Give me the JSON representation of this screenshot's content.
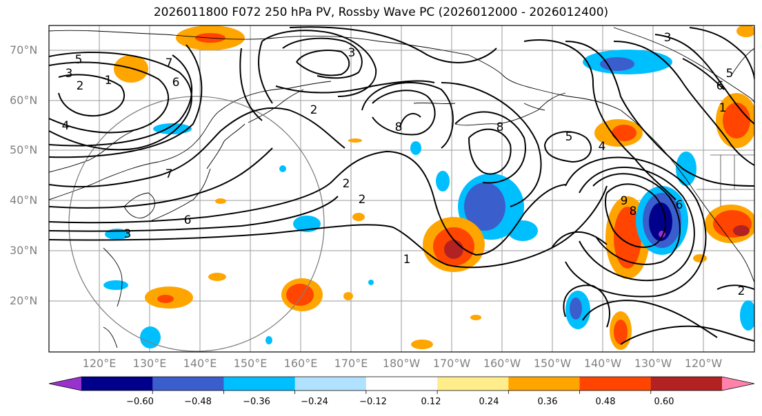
{
  "title": "2026011800 F072 250 hPa PV, Rossby Wave PC (2026012000 - 2026012400)",
  "lat_labels": [
    "70°N",
    "60°N",
    "50°N",
    "40°N",
    "30°N",
    "20°N"
  ],
  "lon_labels": [
    "120°E",
    "130°E",
    "140°E",
    "150°E",
    "160°E",
    "170°E",
    "180°W",
    "170°W",
    "160°W",
    "150°W",
    "140°W",
    "130°W",
    "120°W"
  ],
  "contour_labels": [
    "5",
    "3",
    "2",
    "1",
    "7",
    "6",
    "4",
    "7",
    "6",
    "3",
    "3",
    "2",
    "8",
    "8",
    "5",
    "4",
    "2",
    "2",
    "1",
    "6",
    "5",
    "3",
    "1",
    "9",
    "8",
    "6",
    "2"
  ],
  "colorbar": {
    "tick_labels": [
      "−0.60",
      "−0.48",
      "−0.36",
      "−0.24",
      "−0.12",
      "0.12",
      "0.24",
      "0.36",
      "0.48",
      "0.60"
    ],
    "colors": [
      "#9932cc",
      "#00008b",
      "#3a5fcd",
      "#00bfff",
      "#b0e2ff",
      "#ffffff",
      "#ffec8b",
      "#ffa500",
      "#ff4500",
      "#b22222",
      "#ff82ab"
    ]
  }
}
